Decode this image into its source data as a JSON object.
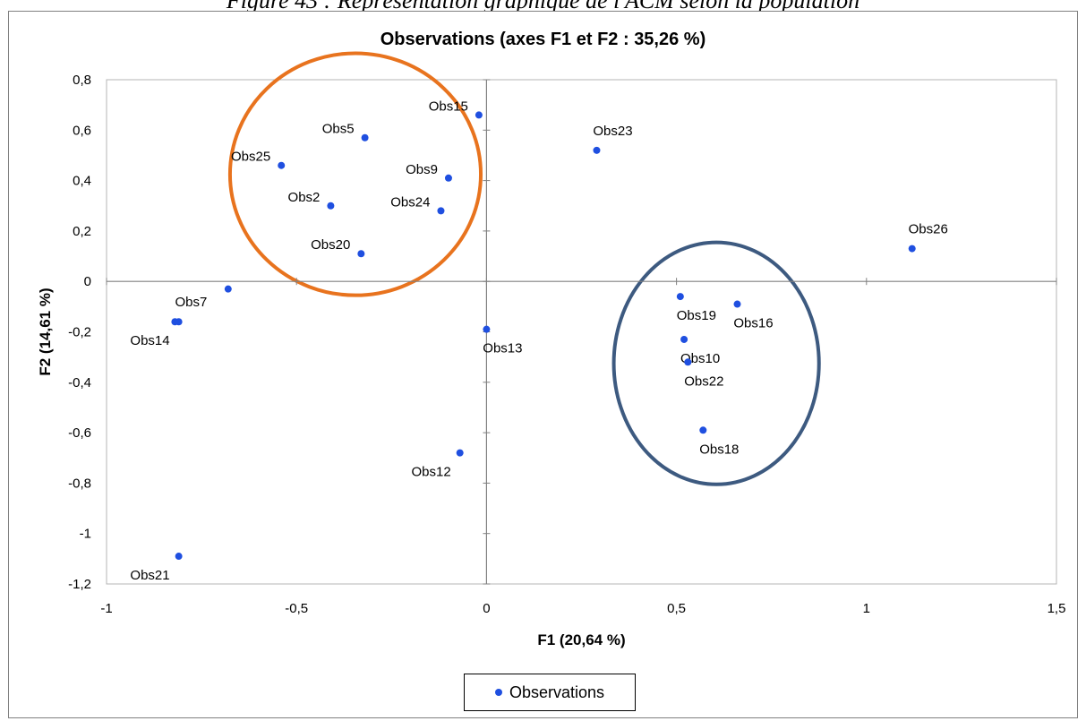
{
  "caption": "Figure 43 : Représentation graphique de l'ACM selon la population",
  "chart_data": {
    "type": "scatter",
    "title": "Observations (axes F1 et F2 : 35,26 %)",
    "xlabel": "F1 (20,64 %)",
    "ylabel": "F2 (14,61 %)",
    "xlim": [
      -1,
      1.5
    ],
    "ylim": [
      -1.2,
      0.8
    ],
    "x_ticks": [
      -1,
      -0.5,
      0,
      0.5,
      1,
      1.5
    ],
    "x_tick_labels": [
      "-1",
      "-0,5",
      "0",
      "0,5",
      "1",
      "1,5"
    ],
    "y_ticks": [
      0.8,
      0.6,
      0.4,
      0.2,
      0,
      -0.2,
      -0.4,
      -0.6,
      -0.8,
      -1,
      -1.2
    ],
    "y_tick_labels": [
      "0,8",
      "0,6",
      "0,4",
      "0,2",
      "0",
      "-0,2",
      "-0,4",
      "-0,6",
      "-0,8",
      "-1",
      "-1,2"
    ],
    "grid": false,
    "legend_position": "bottom",
    "marker_color": "#1f4fe0",
    "series": [
      {
        "name": "Observations",
        "points": [
          {
            "label": "Obs15",
            "x": -0.02,
            "y": 0.66,
            "label_pos": "left"
          },
          {
            "label": "Obs5",
            "x": -0.32,
            "y": 0.57,
            "label_pos": "left"
          },
          {
            "label": "Obs23",
            "x": 0.29,
            "y": 0.52,
            "label_pos": "above"
          },
          {
            "label": "Obs25",
            "x": -0.54,
            "y": 0.46,
            "label_pos": "left"
          },
          {
            "label": "Obs9",
            "x": -0.1,
            "y": 0.41,
            "label_pos": "left"
          },
          {
            "label": "Obs2",
            "x": -0.41,
            "y": 0.3,
            "label_pos": "left"
          },
          {
            "label": "Obs24",
            "x": -0.12,
            "y": 0.28,
            "label_pos": "left"
          },
          {
            "label": "Obs20",
            "x": -0.33,
            "y": 0.11,
            "label_pos": "left"
          },
          {
            "label": "Obs26",
            "x": 1.12,
            "y": 0.13,
            "label_pos": "above"
          },
          {
            "label": "",
            "x": -0.68,
            "y": -0.03,
            "label_pos": "none"
          },
          {
            "label": "Obs7",
            "x": -0.82,
            "y": -0.16,
            "label_pos": "above"
          },
          {
            "label": "Obs14",
            "x": -0.81,
            "y": -0.16,
            "label_pos": "belowleft"
          },
          {
            "label": "Obs13",
            "x": 0.0,
            "y": -0.19,
            "label_pos": "below"
          },
          {
            "label": "Obs19",
            "x": 0.51,
            "y": -0.06,
            "label_pos": "below"
          },
          {
            "label": "Obs16",
            "x": 0.66,
            "y": -0.09,
            "label_pos": "below"
          },
          {
            "label": "Obs10",
            "x": 0.52,
            "y": -0.23,
            "label_pos": "below"
          },
          {
            "label": "Obs22",
            "x": 0.53,
            "y": -0.32,
            "label_pos": "below"
          },
          {
            "label": "Obs18",
            "x": 0.57,
            "y": -0.59,
            "label_pos": "below"
          },
          {
            "label": "Obs12",
            "x": -0.07,
            "y": -0.68,
            "label_pos": "belowleft"
          },
          {
            "label": "Obs21",
            "x": -0.81,
            "y": -1.09,
            "label_pos": "belowleft"
          }
        ]
      }
    ],
    "annotations": [
      {
        "shape": "ellipse",
        "color": "#e8731e",
        "cx": -0.345,
        "cy": 0.425,
        "rx": 0.33,
        "ry": 0.48
      },
      {
        "shape": "ellipse",
        "color": "#3d5a80",
        "cx": 0.605,
        "cy": -0.325,
        "rx": 0.27,
        "ry": 0.48
      }
    ]
  }
}
